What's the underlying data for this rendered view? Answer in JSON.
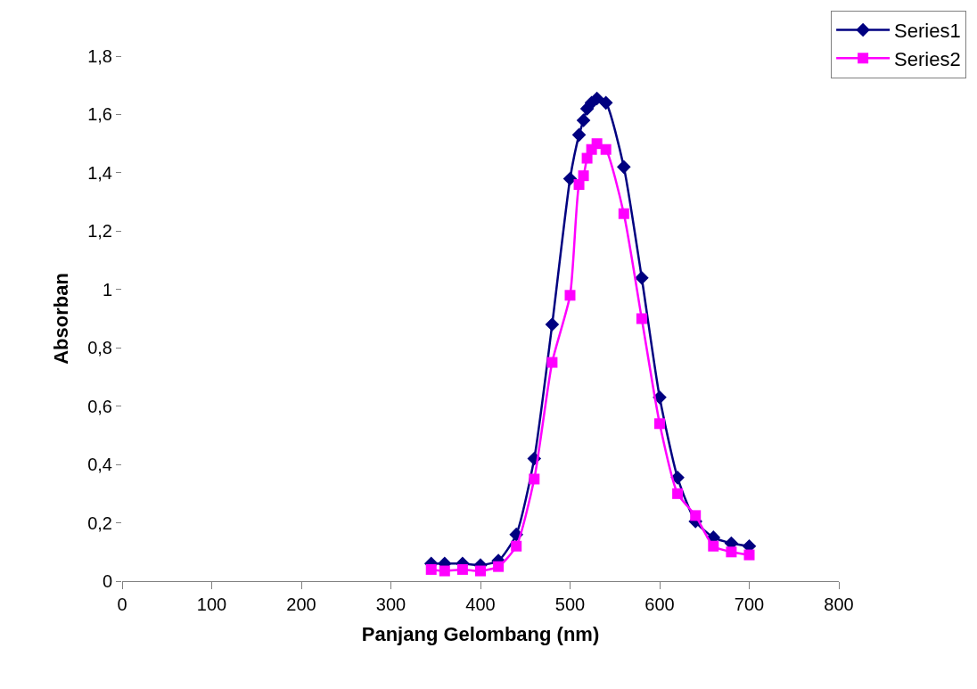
{
  "chart_data": {
    "type": "line",
    "xlabel": "Panjang Gelombang (nm)",
    "ylabel": "Absorban",
    "x": [
      345,
      360,
      380,
      400,
      420,
      440,
      460,
      480,
      500,
      510,
      515,
      519,
      524,
      530,
      540,
      560,
      580,
      600,
      620,
      640,
      660,
      680,
      700
    ],
    "series": [
      {
        "name": "Series1",
        "color": "#000080",
        "marker": "diamond",
        "values": [
          0.06,
          0.06,
          0.06,
          0.055,
          0.07,
          0.16,
          0.42,
          0.88,
          1.38,
          1.53,
          1.58,
          1.62,
          1.64,
          1.655,
          1.64,
          1.42,
          1.04,
          0.63,
          0.355,
          0.205,
          0.15,
          0.13,
          0.12
        ]
      },
      {
        "name": "Series2",
        "color": "#ff00ff",
        "marker": "square",
        "values": [
          0.04,
          0.035,
          0.04,
          0.035,
          0.05,
          0.12,
          0.35,
          0.75,
          0.98,
          1.36,
          1.39,
          1.45,
          1.48,
          1.5,
          1.48,
          1.26,
          0.9,
          0.54,
          0.3,
          0.225,
          0.12,
          0.1,
          0.09
        ]
      }
    ],
    "xlim": [
      0,
      800
    ],
    "xticks": [
      0,
      100,
      200,
      300,
      400,
      500,
      600,
      700,
      800
    ],
    "ylim": [
      0,
      1.8
    ],
    "yticks": [
      0,
      {
        "value": 0.2,
        "label": "0,2"
      },
      {
        "value": 0.4,
        "label": "0,4"
      },
      {
        "value": 0.6,
        "label": "0,6"
      },
      {
        "value": 0.8,
        "label": "0,8"
      },
      1,
      {
        "value": 1.2,
        "label": "1,2"
      },
      {
        "value": 1.4,
        "label": "1,4"
      },
      {
        "value": 1.6,
        "label": "1,6"
      },
      {
        "value": 1.8,
        "label": "1,8"
      }
    ],
    "legend": "top right",
    "line_style": "solid"
  }
}
